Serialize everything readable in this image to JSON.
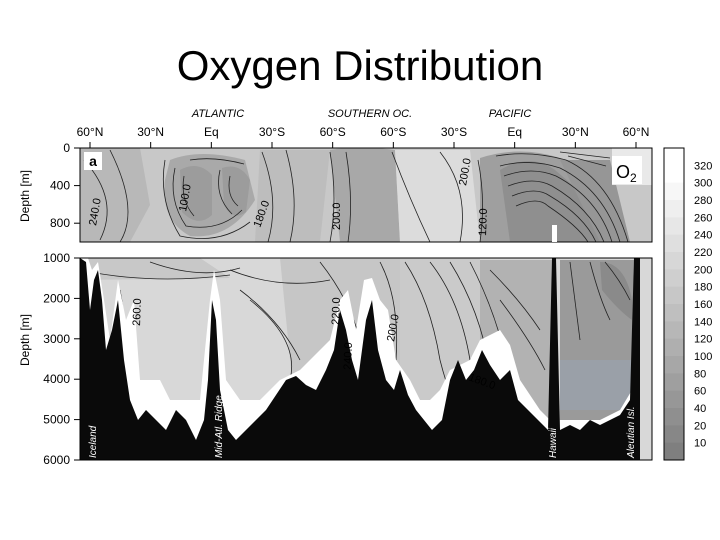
{
  "slide": {
    "title": "Oxygen Distribution"
  },
  "chart_data": {
    "type": "heatmap",
    "title": "",
    "panel_label": "a",
    "variable_label": "O",
    "variable_subscript": "2",
    "ocean_labels": [
      "ATLANTIC",
      "SOUTHERN OC.",
      "PACIFIC"
    ],
    "x_tick_labels": [
      "60°N",
      "30°N",
      "Eq",
      "30°S",
      "60°S",
      "60°S",
      "30°S",
      "Eq",
      "30°N",
      "60°N"
    ],
    "upper_panel": {
      "ylabel": "Depth [m]",
      "yticks": [
        0,
        400,
        800
      ],
      "ylim": [
        0,
        1000
      ]
    },
    "lower_panel": {
      "ylabel": "Depth [m]",
      "yticks": [
        1000,
        2000,
        3000,
        4000,
        5000,
        6000
      ],
      "ylim": [
        1000,
        6000
      ]
    },
    "colorbar": {
      "levels": [
        10,
        20,
        40,
        60,
        80,
        100,
        120,
        140,
        160,
        180,
        200,
        220,
        240,
        260,
        280,
        300,
        320
      ],
      "low_color": "#7f7f7f",
      "high_color": "#ffffff"
    },
    "contour_labels": [
      "240.0",
      "100.0",
      "180.0",
      "200.0",
      "200.0",
      "120.0",
      "260.0",
      "220.0",
      "240.0",
      "200.0",
      "180.0"
    ],
    "feature_labels": [
      "Iceland",
      "Mid-Atl. Ridge",
      "Hawaii",
      "Aleutian Isl."
    ]
  }
}
